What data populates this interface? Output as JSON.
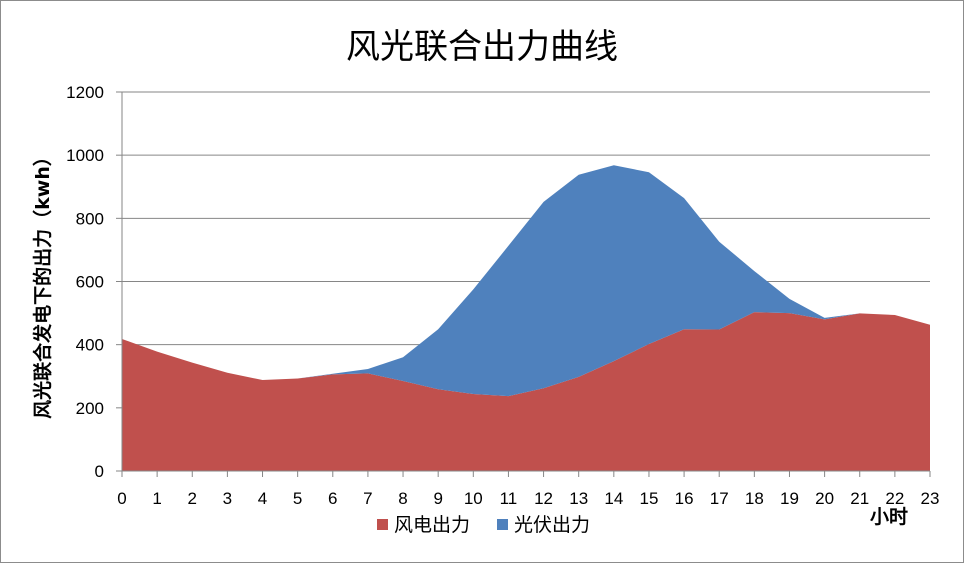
{
  "chart_data": {
    "type": "area",
    "stacked": true,
    "title": "风光联合出力曲线",
    "xlabel": "小时",
    "ylabel": "风光联合发电下的出力（kwh）",
    "x": [
      0,
      1,
      2,
      3,
      4,
      5,
      6,
      7,
      8,
      9,
      10,
      11,
      12,
      13,
      14,
      15,
      16,
      17,
      18,
      19,
      20,
      21,
      22,
      23
    ],
    "ylim": [
      0,
      1200
    ],
    "yticks": [
      0,
      200,
      400,
      600,
      800,
      1000,
      1200
    ],
    "grid": true,
    "legend_position": "bottom",
    "series": [
      {
        "name": "风电出力",
        "color": "#c0504d",
        "values": [
          418,
          378,
          343,
          311,
          288,
          293,
          306,
          309,
          285,
          259,
          244,
          237,
          262,
          298,
          348,
          402,
          449,
          448,
          503,
          500,
          480,
          499,
          494,
          463
        ]
      },
      {
        "name": "光伏出力",
        "color": "#4f81bd",
        "values": [
          0,
          0,
          0,
          0,
          0,
          0,
          2,
          14,
          75,
          190,
          331,
          476,
          590,
          640,
          620,
          544,
          415,
          278,
          130,
          45,
          5,
          0,
          0,
          0
        ]
      }
    ]
  }
}
